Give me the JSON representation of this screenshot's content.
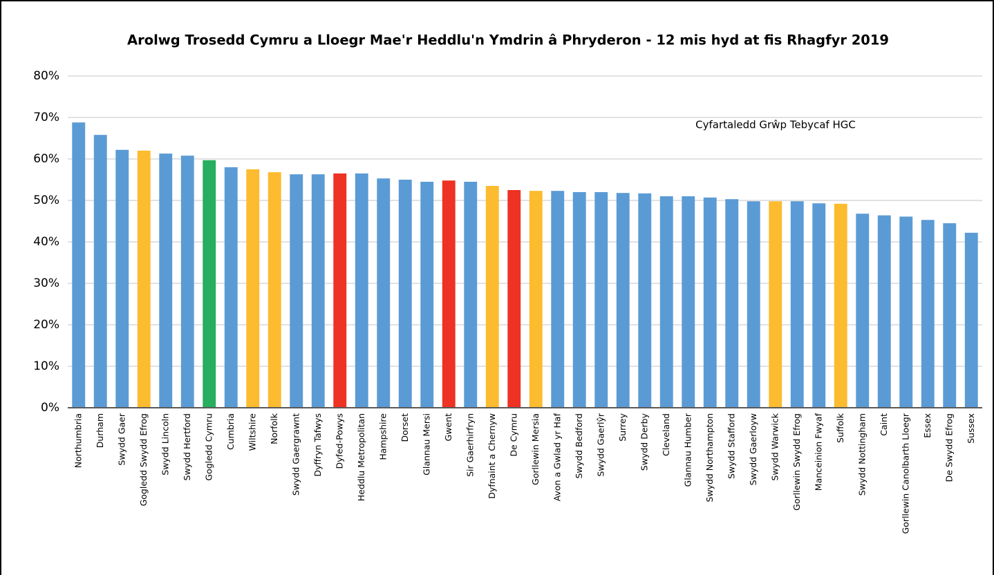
{
  "chart_data": {
    "type": "bar",
    "title": "Arolwg Trosedd Cymru a Lloegr Mae'r Heddlu'n Ymdrin â Phryderon - 12 mis hyd at fis Rhagfyr 2019",
    "annotation": "Cyfartaledd Grŵp Tebycaf HGC",
    "categories": [
      "Northumbria",
      "Durham",
      "Swydd Gaer",
      "Gogledd Swydd Efrog",
      "Swydd Lincoln",
      "Swydd Hertford",
      "Gogledd Cymru",
      "Cumbria",
      "Wiltshire",
      "Norfolk",
      "Swydd Gaergrawnt",
      "Dyffryn Tafwys",
      "Dyfed-Powys",
      "Heddlu Metropolitan",
      "Hampshire",
      "Dorset",
      "Glannau Mersi",
      "Gwent",
      "Sir Gaerhirfryn",
      "Dyfnaint a Chernyw",
      "De Cymru",
      "Gorllewin Mersia",
      "Avon a Gwlad yr Haf",
      "Swydd Bedford",
      "Swydd Gaerlŷr",
      "Surrey",
      "Swydd Derby",
      "Cleveland",
      "Glannau Humber",
      "Swydd Northampton",
      "Swydd Stafford",
      "Swydd Gaerloyw",
      "Swydd Warwick",
      "Gorllewin Swydd Efrog",
      "Manceinion Fwyaf",
      "Suffolk",
      "Swydd Nottingham",
      "Caint",
      "Gorllewin Canolbarth Lloegr",
      "Essex",
      "De Swydd Efrog",
      "Sussex"
    ],
    "values": [
      68.8,
      65.8,
      62.2,
      62,
      61.3,
      60.8,
      59.7,
      58,
      57.5,
      56.8,
      56.3,
      56.3,
      56.5,
      56.5,
      55.3,
      55,
      54.5,
      54.8,
      54.5,
      53.5,
      52.5,
      52.3,
      52.3,
      52,
      52,
      51.8,
      51.7,
      51,
      51,
      50.7,
      50.3,
      49.8,
      49.8,
      49.8,
      49.3,
      49.2,
      46.8,
      46.4,
      46.1,
      45.3,
      44.5,
      42.2
    ],
    "colors": [
      "#5b9bd5",
      "#5b9bd5",
      "#5b9bd5",
      "#fdbb2f",
      "#5b9bd5",
      "#5b9bd5",
      "#27ae5f",
      "#5b9bd5",
      "#fdbb2f",
      "#fdbb2f",
      "#5b9bd5",
      "#5b9bd5",
      "#ee3224",
      "#5b9bd5",
      "#5b9bd5",
      "#5b9bd5",
      "#5b9bd5",
      "#ee3224",
      "#5b9bd5",
      "#fdbb2f",
      "#ee3224",
      "#fdbb2f",
      "#5b9bd5",
      "#5b9bd5",
      "#5b9bd5",
      "#5b9bd5",
      "#5b9bd5",
      "#5b9bd5",
      "#5b9bd5",
      "#5b9bd5",
      "#5b9bd5",
      "#5b9bd5",
      "#fdbb2f",
      "#5b9bd5",
      "#5b9bd5",
      "#fdbb2f",
      "#5b9bd5",
      "#5b9bd5",
      "#5b9bd5",
      "#5b9bd5",
      "#5b9bd5",
      "#5b9bd5"
    ],
    "ylim": [
      0,
      80
    ],
    "yticks": [
      {
        "value": 0,
        "label": "0%"
      },
      {
        "value": 10,
        "label": "10%"
      },
      {
        "value": 20,
        "label": "20%"
      },
      {
        "value": 30,
        "label": "30%"
      },
      {
        "value": 40,
        "label": "40%"
      },
      {
        "value": 50,
        "label": "50%"
      },
      {
        "value": 60,
        "label": "60%"
      },
      {
        "value": 70,
        "label": "70%"
      },
      {
        "value": 80,
        "label": "80%"
      }
    ],
    "grid": true
  }
}
